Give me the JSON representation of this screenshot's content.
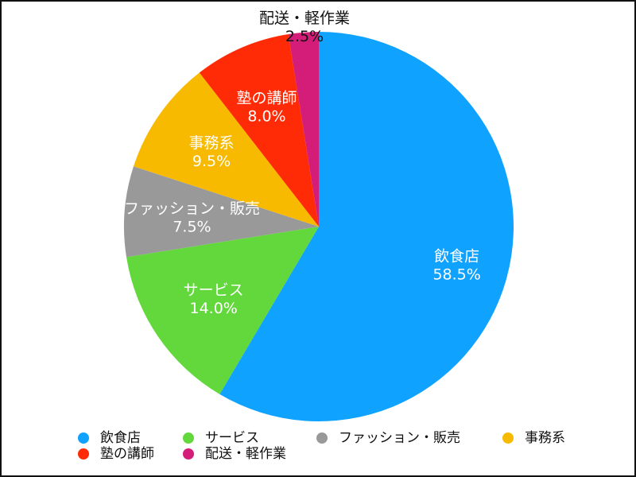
{
  "chart_data": {
    "type": "pie",
    "title": "",
    "slices": [
      {
        "label": "飲食店",
        "value": 58.5,
        "value_label": "58.5%",
        "color": "#10A2FF"
      },
      {
        "label": "サービス",
        "value": 14.0,
        "value_label": "14.0%",
        "color": "#62D83C"
      },
      {
        "label": "ファッション・販売",
        "value": 7.5,
        "value_label": "7.5%",
        "color": "#999999"
      },
      {
        "label": "事務系",
        "value": 9.5,
        "value_label": "9.5%",
        "color": "#F8BA00"
      },
      {
        "label": "塾の講師",
        "value": 8.0,
        "value_label": "8.0%",
        "color": "#FF2B06"
      },
      {
        "label": "配送・軽作業",
        "value": 2.5,
        "value_label": "2.5%",
        "color": "#D41C79"
      }
    ],
    "start_angle": "12 o'clock",
    "direction": "clockwise",
    "legend_position": "bottom"
  }
}
